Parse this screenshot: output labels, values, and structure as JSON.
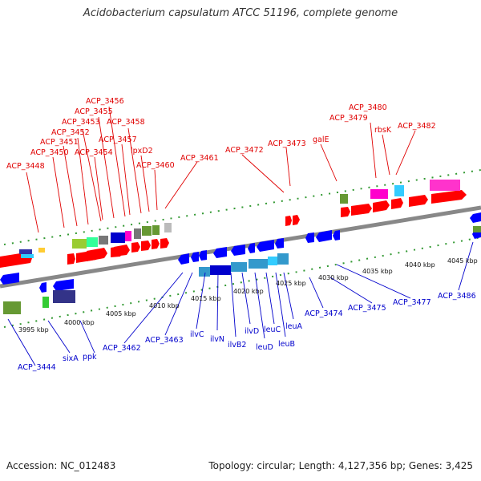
{
  "header": {
    "title": "Acidobacterium capsulatum ATCC 51196, complete genome"
  },
  "footer": {
    "accession": "Accession: NC_012483",
    "summary": "Topology: circular; Length: 4,127,356 bp; Genes: 3,425"
  },
  "colors": {
    "forward": "#ff0000",
    "reverse": "#0000ff",
    "backbone": "#888888",
    "tick": "#339933"
  },
  "scale_labels": [
    "3995 kbp",
    "4000 kbp",
    "4005 kbp",
    "4010 kbp",
    "4015 kbp",
    "4020 kbp",
    "4025 kbp",
    "4030 kbp",
    "4035 kbp",
    "4040 kbp",
    "4045 kbp"
  ],
  "forward_genes": [
    "ACP_3448",
    "ACP_3450",
    "ACP_3451",
    "ACP_3452",
    "ACP_3453",
    "ACP_3454",
    "ACP_3455",
    "ACP_3456",
    "ACP_3457",
    "ACP_3458",
    "lpxD2",
    "ACP_3460",
    "ACP_3461",
    "ACP_3472",
    "ACP_3473",
    "galE",
    "ACP_3479",
    "ACP_3480",
    "rbsK",
    "ACP_3482"
  ],
  "reverse_genes": [
    "ACP_3444",
    "sixA",
    "ppk",
    "ACP_3462",
    "ACP_3463",
    "ilvC",
    "ilvN",
    "ilvB2",
    "ilvD",
    "leuD",
    "leuC",
    "leuB",
    "leuA",
    "ACP_3474",
    "ACP_3475",
    "ACP_3477",
    "ACP_3486"
  ]
}
